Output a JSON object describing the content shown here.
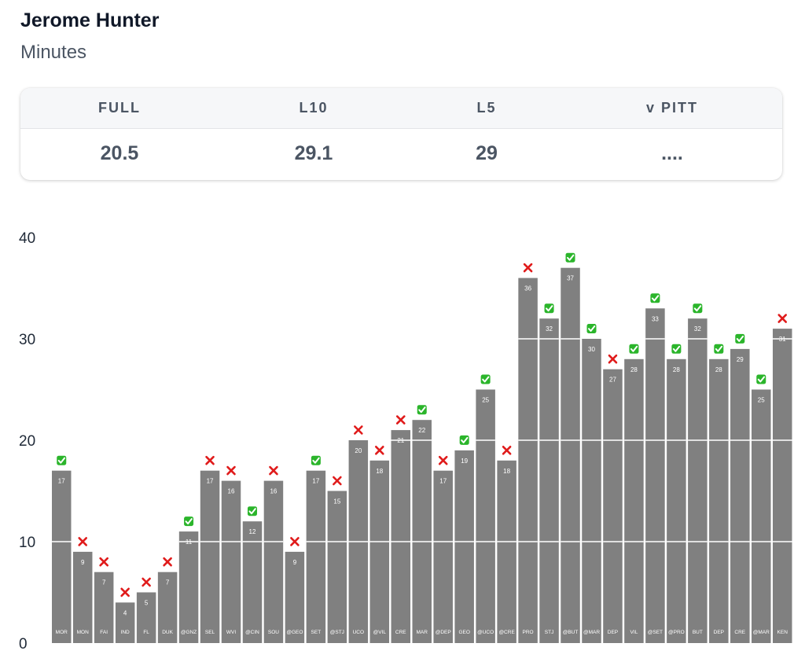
{
  "header": {
    "name": "Jerome Hunter",
    "stat": "Minutes"
  },
  "summary": {
    "columns": [
      {
        "label": "FULL",
        "value": "20.5"
      },
      {
        "label": "L10",
        "value": "29.1"
      },
      {
        "label": "L5",
        "value": "29"
      },
      {
        "label": "v PITT",
        "value": "...."
      }
    ]
  },
  "colors": {
    "bar": "#808080",
    "hit": "#2bb52b",
    "miss": "#e01b1b",
    "gridline": "#ffffff"
  },
  "chart_data": {
    "type": "bar",
    "ylim": [
      0,
      40
    ],
    "yticks": [
      0,
      10,
      20,
      30,
      40
    ],
    "categories": [
      "MOR",
      "MON",
      "FAI",
      "IND",
      "FL",
      "DUK",
      "@GNZ",
      "SEL",
      "WVI",
      "@CIN",
      "SOU",
      "@GEO",
      "SET",
      "@STJ",
      "UCO",
      "@VIL",
      "CRE",
      "MAR",
      "@DEP",
      "GEO",
      "@UCO",
      "@CRE",
      "PRO",
      "STJ",
      "@BUT",
      "@MAR",
      "DEP",
      "VIL",
      "@SET",
      "@PRO",
      "BUT",
      "DEP",
      "CRE",
      "@MAR",
      "KEN"
    ],
    "values": [
      17,
      9,
      7,
      4,
      5,
      7,
      11,
      17,
      16,
      12,
      16,
      9,
      17,
      15,
      20,
      18,
      21,
      22,
      17,
      19,
      25,
      18,
      36,
      32,
      37,
      30,
      27,
      28,
      33,
      28,
      32,
      28,
      29,
      25,
      31
    ],
    "marks": [
      "hit",
      "miss",
      "miss",
      "miss",
      "miss",
      "miss",
      "hit",
      "miss",
      "miss",
      "hit",
      "miss",
      "miss",
      "hit",
      "miss",
      "miss",
      "miss",
      "miss",
      "hit",
      "miss",
      "hit",
      "hit",
      "miss",
      "miss",
      "hit",
      "hit",
      "hit",
      "miss",
      "hit",
      "hit",
      "hit",
      "hit",
      "hit",
      "hit",
      "hit",
      "miss"
    ]
  }
}
